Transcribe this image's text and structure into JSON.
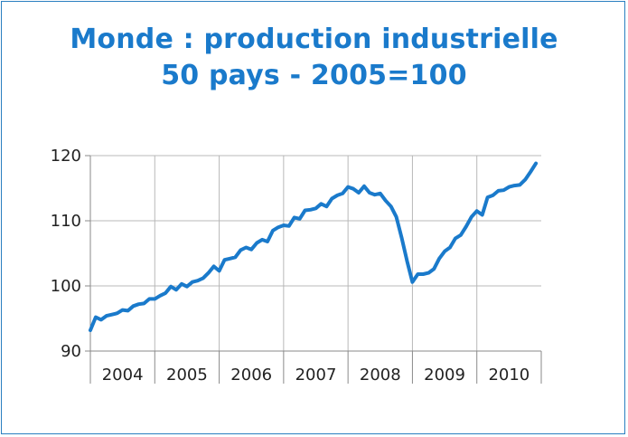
{
  "chart_data": {
    "type": "line",
    "title_lines": [
      "Monde : production industrielle",
      "50 pays - 2005=100"
    ],
    "xlabel": "",
    "ylabel": "",
    "ylim": [
      90,
      120
    ],
    "yticks": [
      90,
      100,
      110,
      120
    ],
    "x_categories": [
      "2004",
      "2005",
      "2006",
      "2007",
      "2008",
      "2009",
      "2010"
    ],
    "grid": true,
    "line_color": "#1a7acb",
    "series": [
      {
        "x": [
          2004.0,
          2004.0833,
          2004.1667,
          2004.25,
          2004.3333,
          2004.4167,
          2004.5,
          2004.5833,
          2004.6667,
          2004.75,
          2004.8333,
          2004.9167,
          2005.0,
          2005.0833,
          2005.1667,
          2005.25,
          2005.3333,
          2005.4167,
          2005.5,
          2005.5833,
          2005.6667,
          2005.75,
          2005.8333,
          2005.9167,
          2006.0,
          2006.0833,
          2006.1667,
          2006.25,
          2006.3333,
          2006.4167,
          2006.5,
          2006.5833,
          2006.6667,
          2006.75,
          2006.8333,
          2006.9167,
          2007.0,
          2007.0833,
          2007.1667,
          2007.25,
          2007.3333,
          2007.4167,
          2007.5,
          2007.5833,
          2007.6667,
          2007.75,
          2007.8333,
          2007.9167,
          2008.0,
          2008.0833,
          2008.1667,
          2008.25,
          2008.3333,
          2008.4167,
          2008.5,
          2008.5833,
          2008.6667,
          2008.75,
          2008.8333,
          2008.9167,
          2009.0,
          2009.0833,
          2009.1667,
          2009.25,
          2009.3333,
          2009.4167,
          2009.5,
          2009.5833,
          2009.6667,
          2009.75,
          2009.8333,
          2009.9167,
          2010.0,
          2010.0833,
          2010.1667,
          2010.25,
          2010.3333,
          2010.4167,
          2010.5,
          2010.5833,
          2010.6667,
          2010.75,
          2010.8333,
          2010.9167
        ],
        "values": [
          93.2,
          95.2,
          94.8,
          95.4,
          95.6,
          95.8,
          96.3,
          96.2,
          96.9,
          97.2,
          97.3,
          98.0,
          98.0,
          98.5,
          98.9,
          99.9,
          99.4,
          100.3,
          99.9,
          100.6,
          100.8,
          101.2,
          102.0,
          103.0,
          102.3,
          104.0,
          104.2,
          104.4,
          105.5,
          105.9,
          105.6,
          106.6,
          107.1,
          106.8,
          108.5,
          109.0,
          109.3,
          109.2,
          110.5,
          110.3,
          111.6,
          111.7,
          111.9,
          112.6,
          112.2,
          113.4,
          113.9,
          114.2,
          115.2,
          114.9,
          114.3,
          115.3,
          114.3,
          114.0,
          114.2,
          113.1,
          112.2,
          110.6,
          107.4,
          103.8,
          100.6,
          101.8,
          101.8,
          102.0,
          102.6,
          104.2,
          105.3,
          105.9,
          107.3,
          107.8,
          109.1,
          110.6,
          111.5,
          110.9,
          113.6,
          113.9,
          114.6,
          114.7,
          115.2,
          115.4,
          115.5,
          116.3,
          117.5,
          118.8
        ]
      }
    ]
  }
}
